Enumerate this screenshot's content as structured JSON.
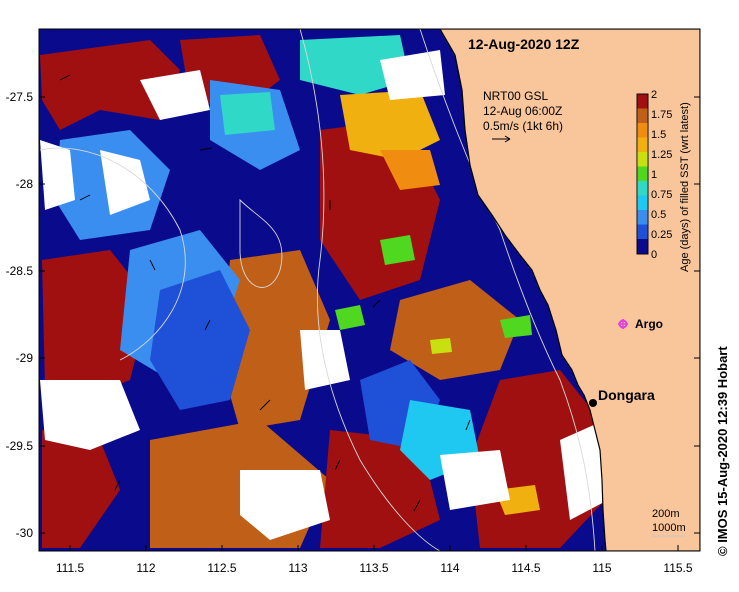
{
  "map": {
    "title": "12-Aug-2020 12Z",
    "current_source": "NRT00 GSL",
    "current_time": "12-Aug 06:00Z",
    "current_scale": "0.5m/s (1kt 6h)",
    "place_dongara": "Dongara",
    "argo_label": "Argo",
    "isobath_200": "200m",
    "isobath_1000": "1000m",
    "credit": "© IMOS 15-Aug-2020 12:39 Hobart",
    "lon_ticks": [
      "111.5",
      "112",
      "112.5",
      "113",
      "113.5",
      "114",
      "114.5",
      "115",
      "115.5"
    ],
    "lat_ticks": [
      "-27.5",
      "-28",
      "-28.5",
      "-29",
      "-29.5",
      "-30"
    ],
    "land_color": "#f9c59b",
    "argo_color": "#e040e0"
  },
  "colorbar": {
    "label": "Age (days) of filled SST (wrt latest)",
    "ticks": [
      "2",
      "1.75",
      "1.5",
      "1.25",
      "1",
      "0.75",
      "0.5",
      "0.25",
      "0"
    ],
    "colors": [
      "#0a0a8c",
      "#1e50d8",
      "#3a8ef0",
      "#1ec8f0",
      "#30d8c8",
      "#50d820",
      "#c8e010",
      "#f0b010",
      "#f08c10",
      "#c06018",
      "#a01010"
    ]
  }
}
